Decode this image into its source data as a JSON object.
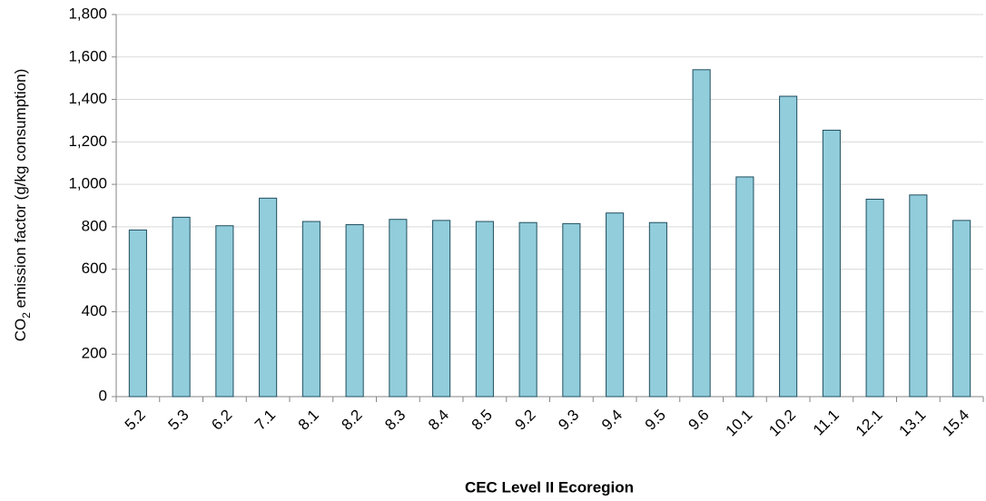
{
  "chart_data": {
    "type": "bar",
    "xlabel": "CEC Level II Ecoregion",
    "ylabel_parts": [
      "CO",
      "2",
      " emission factor (g/kg consumption)"
    ],
    "categories": [
      "5.2",
      "5.3",
      "6.2",
      "7.1",
      "8.1",
      "8.2",
      "8.3",
      "8.4",
      "8.5",
      "9.2",
      "9.3",
      "9.4",
      "9.5",
      "9.6",
      "10.1",
      "10.2",
      "11.1",
      "12.1",
      "13.1",
      "15.4"
    ],
    "values": [
      785,
      845,
      805,
      935,
      825,
      810,
      835,
      830,
      825,
      820,
      815,
      865,
      820,
      1540,
      1035,
      1415,
      1255,
      930,
      950,
      830
    ],
    "color": "#92cddc",
    "edge_color": "#1f4e5f",
    "ylim": [
      0,
      1800
    ],
    "yticks": [
      0,
      200,
      400,
      600,
      800,
      {
        "value": 1000,
        "label": "1,000"
      },
      {
        "value": 1200,
        "label": "1,200"
      },
      {
        "value": 1400,
        "label": "1,400"
      },
      {
        "value": 1600,
        "label": "1,600"
      },
      {
        "value": 1800,
        "label": "1,800"
      }
    ],
    "grid": true
  }
}
